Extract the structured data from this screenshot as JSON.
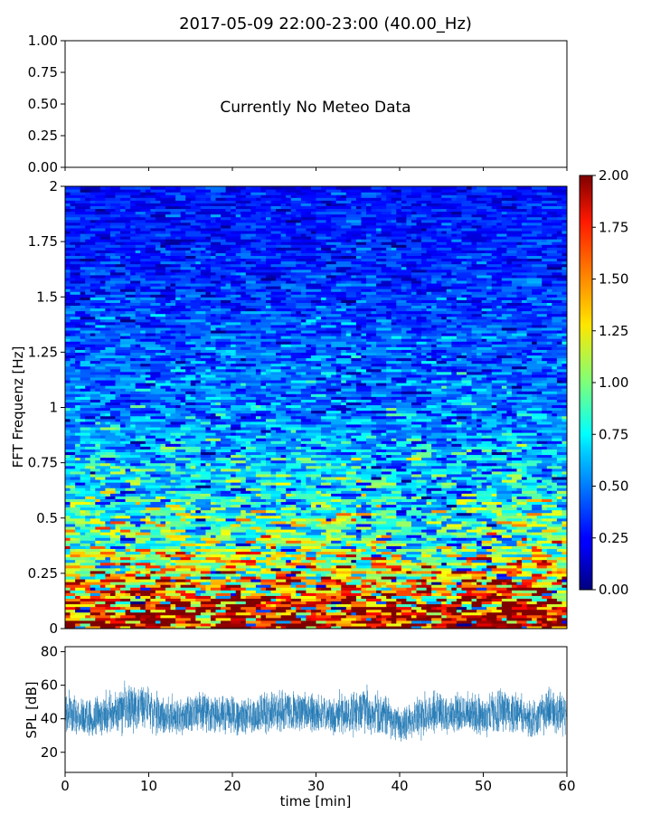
{
  "figure": {
    "title": "2017-05-09 22:00-23:00 (40.00_Hz)"
  },
  "chart_data": [
    {
      "type": "line",
      "panel": "meteo",
      "annotation": "Currently No Meteo Data",
      "ylim": [
        0,
        1
      ],
      "yticks": [
        "0.00",
        "0.25",
        "0.50",
        "0.75",
        "1.00"
      ],
      "series": [],
      "grid": false
    },
    {
      "type": "heatmap",
      "panel": "spectrogram",
      "ylabel": "FFT Frequenz [Hz]",
      "ylim": [
        0,
        2
      ],
      "yticks": [
        "0",
        "0.25",
        "0.5",
        "0.75",
        "1",
        "1.25",
        "1.5",
        "1.75",
        "2"
      ],
      "xlim": [
        0,
        60
      ],
      "colormap": "jet",
      "colorbar": {
        "range": [
          0.0,
          2.0
        ],
        "ticks": [
          "0.00",
          "0.25",
          "0.50",
          "0.75",
          "1.00",
          "1.25",
          "1.50",
          "1.75",
          "2.00"
        ]
      },
      "profile": {
        "frequency_hz": [
          0.0,
          0.05,
          0.1,
          0.15,
          0.2,
          0.25,
          0.3,
          0.4,
          0.5,
          0.6,
          0.75,
          1.0,
          1.25,
          1.5,
          1.75,
          2.0
        ],
        "typical_value": [
          1.9,
          1.85,
          1.7,
          1.55,
          1.4,
          1.25,
          1.1,
          0.95,
          0.85,
          0.75,
          0.62,
          0.5,
          0.42,
          0.35,
          0.3,
          0.27
        ]
      },
      "grid": false
    },
    {
      "type": "line",
      "panel": "spl",
      "ylabel": "SPL [dB]",
      "xlabel": "time [min]",
      "xlim": [
        0,
        60
      ],
      "ylim": [
        8,
        83
      ],
      "xticks": [
        "0",
        "10",
        "20",
        "30",
        "40",
        "50",
        "60"
      ],
      "yticks": [
        "20",
        "40",
        "60",
        "80"
      ],
      "series": [
        {
          "color": "#1f77b4",
          "envelope": {
            "time_min": [
              0,
              2,
              4,
              6,
              8,
              10,
              12,
              14,
              16,
              18,
              20,
              22,
              24,
              26,
              28,
              30,
              32,
              34,
              36,
              38,
              40,
              42,
              44,
              46,
              48,
              50,
              52,
              54,
              56,
              58,
              60
            ],
            "mean_db": [
              44,
              41,
              41,
              44,
              48,
              46,
              42,
              41,
              44,
              42,
              43,
              41,
              44,
              45,
              44,
              43,
              42,
              42,
              46,
              42,
              36,
              41,
              44,
              41,
              44,
              41,
              46,
              43,
              40,
              44,
              42
            ],
            "spread_db": [
              10,
              9,
              9,
              11,
              12,
              10,
              9,
              9,
              10,
              9,
              10,
              9,
              10,
              10,
              10,
              9,
              9,
              9,
              12,
              10,
              8,
              9,
              11,
              9,
              10,
              9,
              11,
              10,
              9,
              11,
              9
            ]
          }
        }
      ],
      "grid": false
    }
  ]
}
